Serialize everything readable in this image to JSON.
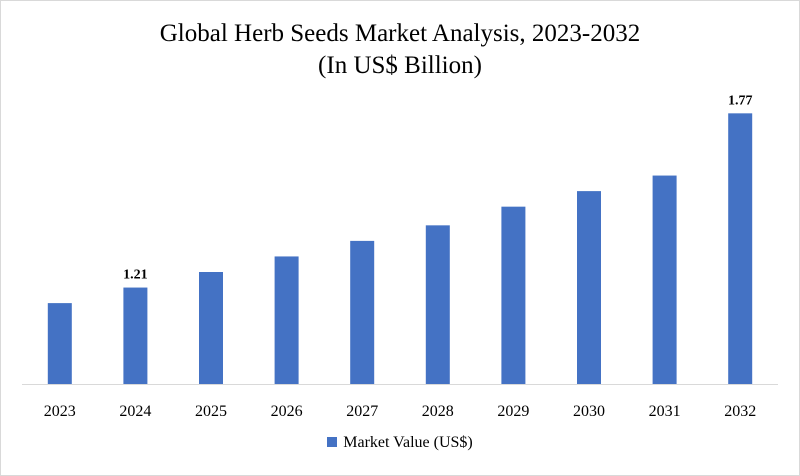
{
  "chart_data": {
    "type": "bar",
    "title": "Global Herb Seeds Market Analysis, 2023-2032",
    "subtitle": "(In US$ Billion)",
    "categories": [
      "2023",
      "2024",
      "2025",
      "2026",
      "2027",
      "2028",
      "2029",
      "2030",
      "2031",
      "2032"
    ],
    "series": [
      {
        "name": "Market Value (US$)",
        "values": [
          1.16,
          1.21,
          1.26,
          1.31,
          1.36,
          1.41,
          1.47,
          1.52,
          1.57,
          1.77
        ],
        "color": "#4472c4"
      }
    ],
    "data_labels": [
      {
        "index": 1,
        "text": "1.21"
      },
      {
        "index": 9,
        "text": "1.77"
      }
    ],
    "ylim": [
      0.9,
      1.8
    ],
    "grid": false,
    "legend_position": "bottom"
  }
}
